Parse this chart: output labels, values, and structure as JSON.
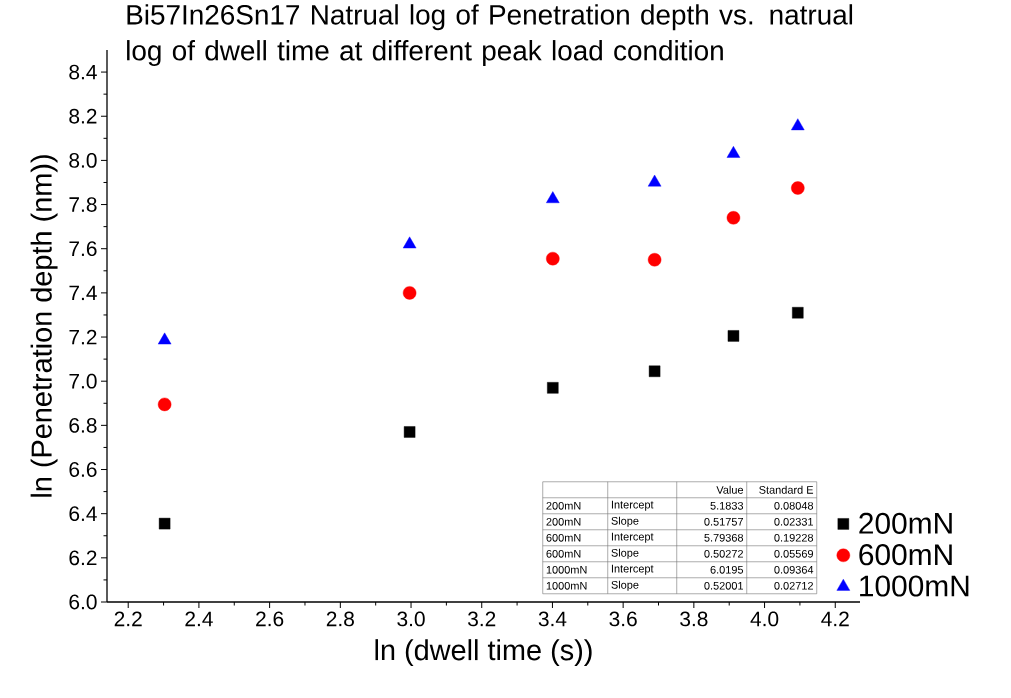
{
  "chart_data": {
    "type": "scatter",
    "title": "Bi57In26Sn17 Natrual log of Penetration depth vs. natrual log of dwell time at different peak load condition",
    "xlabel": "ln (dwell time (s))",
    "ylabel": "ln (Penetration depth (nm))",
    "x": [
      2.303,
      2.996,
      3.401,
      3.689,
      3.912,
      4.094
    ],
    "series": [
      {
        "name": "200mN",
        "color": "#000000",
        "marker": "square",
        "values": [
          6.355,
          6.77,
          6.97,
          7.045,
          7.205,
          7.31
        ]
      },
      {
        "name": "600mN",
        "color": "#ff0000",
        "marker": "circle",
        "values": [
          6.895,
          7.4,
          7.555,
          7.55,
          7.74,
          7.875
        ]
      },
      {
        "name": "1000mN",
        "color": "#0000ff",
        "marker": "triangle",
        "values": [
          7.185,
          7.62,
          7.825,
          7.9,
          8.03,
          8.155
        ]
      }
    ],
    "xlim": [
      2.14,
      4.27
    ],
    "ylim": [
      6.0,
      8.5
    ],
    "xticks": [
      2.2,
      2.4,
      2.6,
      2.8,
      {
        "value": 3.0,
        "label": "3.0"
      },
      3.2,
      3.4,
      3.6,
      3.8,
      {
        "value": 4.0,
        "label": "4.0"
      },
      4.2
    ],
    "yticks": [
      {
        "value": 6.0,
        "label": "6.0"
      },
      6.2,
      6.4,
      6.6,
      6.8,
      {
        "value": 7.0,
        "label": "7.0"
      },
      7.2,
      7.4,
      7.6,
      7.8,
      {
        "value": 8.0,
        "label": "8.0"
      },
      8.2,
      8.4
    ],
    "legend": "bottom right",
    "annotations": [
      "Value",
      "Standard E",
      "200mN",
      "Intercept",
      "5.1833",
      "0.08048",
      "200mN",
      "Slope",
      "0.51757",
      "0.02331",
      "600mN",
      "Intercept",
      "5.79368",
      "0.19228",
      "600mN",
      "Slope",
      "0.50272",
      "0.05569",
      "1000mN",
      "Intercept",
      "6.0195",
      "0.09364",
      "1000mN",
      "Slope",
      "0.52001",
      "0.02712"
    ]
  }
}
